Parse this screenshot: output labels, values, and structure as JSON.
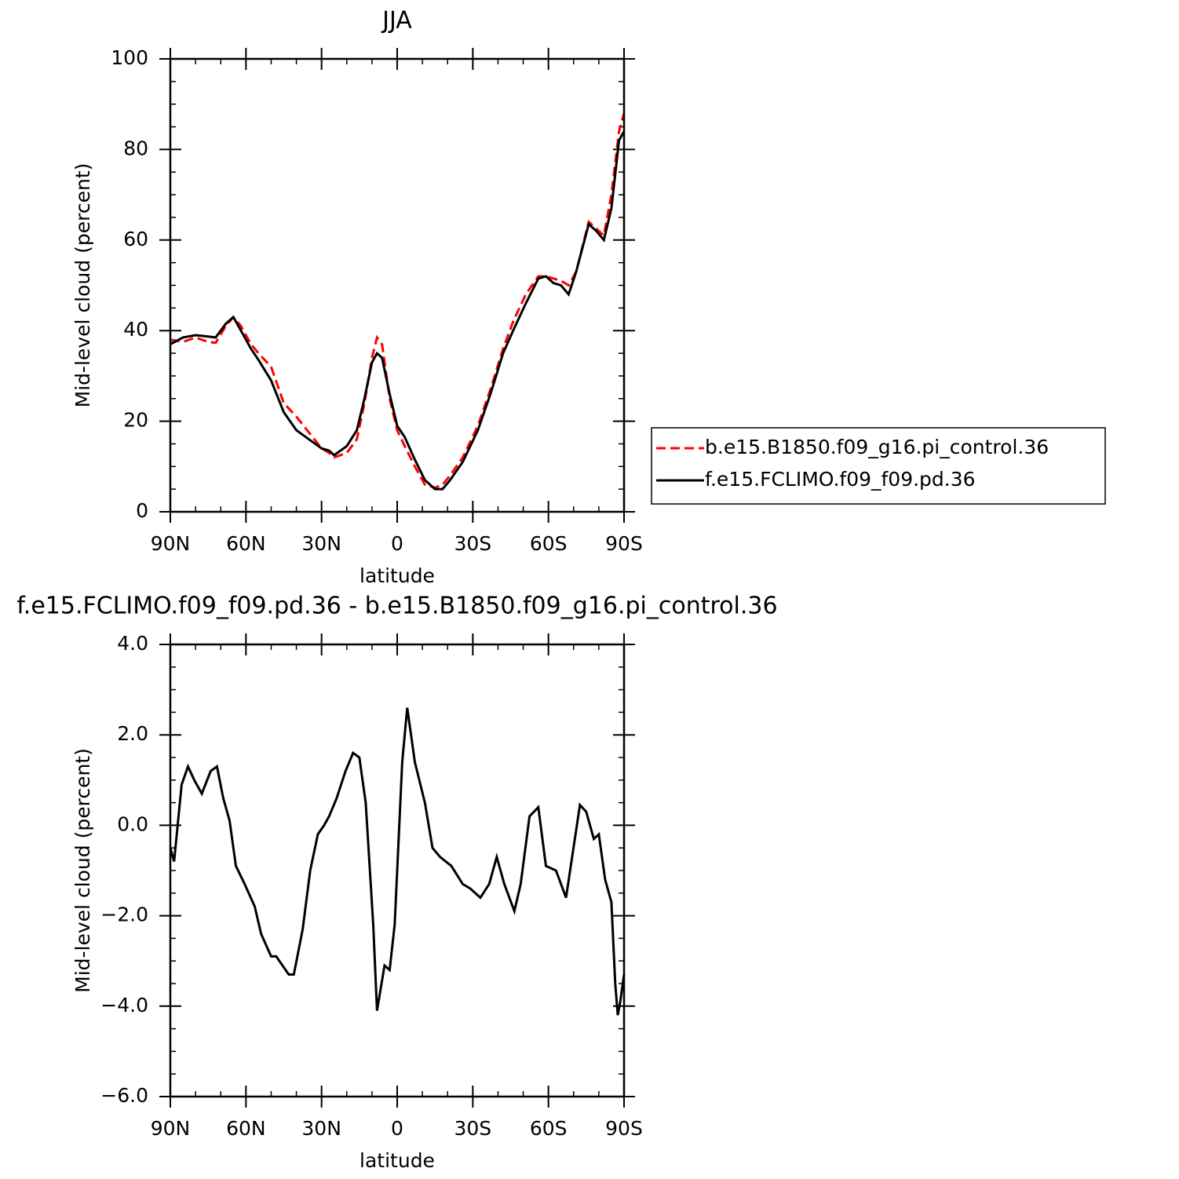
{
  "chart_data": [
    {
      "type": "line",
      "title": "JJA",
      "xlabel": "latitude",
      "ylabel": "Mid-level cloud (percent)",
      "x": [
        90,
        85,
        80,
        75,
        72,
        68,
        65,
        62,
        58,
        55,
        50,
        45,
        40,
        35,
        30,
        27,
        25,
        20,
        16,
        13,
        10,
        8,
        6,
        3,
        0,
        -3,
        -7,
        -11,
        -15,
        -18,
        -21,
        -26,
        -32,
        -37,
        -42,
        -46,
        -51,
        -56,
        -59,
        -62,
        -65,
        -68,
        -71,
        -76,
        -79,
        -82,
        -85,
        -88,
        -90
      ],
      "series": [
        {
          "name": "b.e15.B1850.f09_g16.pi_control.36",
          "color": "#ff0000",
          "linestyle": "dashed",
          "values": [
            38,
            37.5,
            38.5,
            37.5,
            37.3,
            41,
            43,
            41,
            37,
            35,
            32,
            24,
            21,
            17.5,
            14,
            13,
            12,
            13,
            16,
            24,
            34,
            38.5,
            37,
            25,
            18,
            14.5,
            10,
            6,
            5.3,
            6,
            8,
            12,
            19,
            27,
            36,
            42,
            48,
            52,
            52,
            51.5,
            51,
            50,
            53,
            64,
            62.5,
            61,
            70,
            84,
            88
          ]
        },
        {
          "name": "f.e15.FCLIMO.f09_f09.pd.36",
          "color": "#000000",
          "linestyle": "solid",
          "values": [
            37,
            38.5,
            39,
            38.7,
            38.5,
            41.5,
            43,
            40,
            36,
            33.5,
            29,
            22,
            18,
            16,
            14,
            13.5,
            12.5,
            14.5,
            18,
            25,
            33,
            35,
            34,
            26,
            19,
            16.5,
            11.5,
            7,
            5,
            5,
            7,
            11,
            18,
            26,
            35,
            40,
            46,
            51.5,
            52,
            50.5,
            50,
            48,
            53,
            63.5,
            62,
            60,
            67,
            82,
            84
          ]
        }
      ],
      "xlim": [
        90,
        -90
      ],
      "xticks": [
        {
          "value": 90,
          "label": "90N"
        },
        {
          "value": 60,
          "label": "60N"
        },
        {
          "value": 30,
          "label": "30N"
        },
        0,
        {
          "value": -30,
          "label": "30S"
        },
        {
          "value": -60,
          "label": "60S"
        },
        {
          "value": -90,
          "label": "90S"
        }
      ],
      "ylim": [
        0,
        100
      ],
      "yticks": [
        0,
        20,
        40,
        60,
        80,
        100
      ],
      "legend": "right"
    },
    {
      "type": "line",
      "title": "f.e15.FCLIMO.f09_f09.pd.36 - b.e15.B1850.f09_g16.pi_control.36",
      "xlabel": "latitude",
      "ylabel": "Mid-level cloud (percent)",
      "x": [
        90,
        88.5,
        85.5,
        83,
        80.5,
        77.5,
        74,
        71.5,
        69,
        66.5,
        64,
        60.5,
        56.5,
        54,
        50,
        48,
        45.5,
        43,
        41,
        37.5,
        34.5,
        31.5,
        29,
        27,
        24,
        20.5,
        17.5,
        15,
        12.5,
        9.5,
        8,
        5,
        3,
        1,
        -2,
        -4,
        -7,
        -11,
        -14,
        -17,
        -21.5,
        -26,
        -29,
        -33,
        -36.5,
        -39.5,
        -42.5,
        -46.5,
        -49,
        -52.5,
        -56,
        -59,
        -63,
        -67,
        -72.5,
        -75,
        -78,
        -80,
        -82.5,
        -85,
        -86.5,
        -87.5,
        -88.5,
        -90
      ],
      "series": [
        {
          "color": "#000000",
          "linestyle": "solid",
          "values": [
            -0.5,
            -0.8,
            0.9,
            1.3,
            1.0,
            0.7,
            1.2,
            1.3,
            0.6,
            0.1,
            -0.9,
            -1.3,
            -1.8,
            -2.4,
            -2.9,
            -2.9,
            -3.1,
            -3.3,
            -3.3,
            -2.3,
            -1.0,
            -0.2,
            0,
            0.2,
            0.6,
            1.2,
            1.6,
            1.5,
            0.5,
            -2.2,
            -4.1,
            -3.1,
            -3.2,
            -2.2,
            1.4,
            2.6,
            1.4,
            0.5,
            -0.5,
            -0.7,
            -0.9,
            -1.3,
            -1.4,
            -1.6,
            -1.3,
            -0.7,
            -1.3,
            -1.9,
            -1.3,
            0.2,
            0.4,
            -0.9,
            -1.0,
            -1.6,
            0.45,
            0.3,
            -0.3,
            -0.2,
            -1.2,
            -1.7,
            -3.5,
            -4.2,
            -3.9,
            -3.3
          ]
        }
      ],
      "xlim": [
        90,
        -90
      ],
      "xticks": [
        {
          "value": 90,
          "label": "90N"
        },
        {
          "value": 60,
          "label": "60N"
        },
        {
          "value": 30,
          "label": "30N"
        },
        0,
        {
          "value": -30,
          "label": "30S"
        },
        {
          "value": -60,
          "label": "60S"
        },
        {
          "value": -90,
          "label": "90S"
        }
      ],
      "ylim": [
        -6,
        4
      ],
      "yticks": [
        {
          "value": -6,
          "label": "−6.0"
        },
        {
          "value": -4,
          "label": "−4.0"
        },
        {
          "value": -2,
          "label": "−2.0"
        },
        {
          "value": 0,
          "label": "0.0"
        },
        {
          "value": 2,
          "label": "2.0"
        },
        {
          "value": 4,
          "label": "4.0"
        }
      ]
    }
  ]
}
